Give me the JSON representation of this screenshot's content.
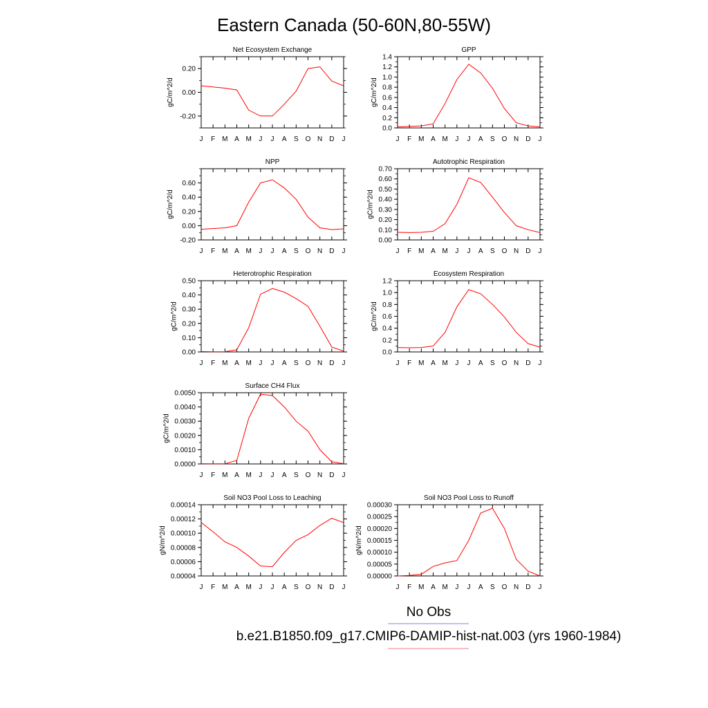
{
  "figure_title": "Eastern Canada (50-60N,80-55W)",
  "months": [
    "J",
    "F",
    "M",
    "A",
    "M",
    "J",
    "J",
    "A",
    "S",
    "O",
    "N",
    "D",
    "J"
  ],
  "legend": {
    "obs_label": "No Obs",
    "obs_color": "#7f7ff0",
    "model_label": "b.e21.B1850.f09_g17.CMIP6-DAMIP-hist-nat.003 (yrs 1960-1984)",
    "model_color": "#f08080"
  },
  "line_color": "#ff0000",
  "chart_data": [
    {
      "type": "line",
      "title": "Net Ecosystem Exchange",
      "ylabel": "gC/m^2/d",
      "ylim": [
        -0.3,
        0.3
      ],
      "yticks": [
        -0.2,
        0.0,
        0.2
      ],
      "yticklabels": [
        "-0.20",
        "0.00",
        "0.20"
      ],
      "values": [
        0.055,
        0.045,
        0.035,
        0.02,
        -0.15,
        -0.2,
        -0.2,
        -0.1,
        0.01,
        0.2,
        0.215,
        0.095,
        0.055
      ]
    },
    {
      "type": "line",
      "title": "GPP",
      "ylabel": "gC/m^2/d",
      "ylim": [
        0,
        1.4
      ],
      "yticks": [
        0,
        0.2,
        0.4,
        0.6,
        0.8,
        1.0,
        1.2,
        1.4
      ],
      "yticklabels": [
        "0.0",
        "0.2",
        "0.4",
        "0.6",
        "0.8",
        "1.0",
        "1.2",
        "1.4"
      ],
      "values": [
        0.02,
        0.03,
        0.04,
        0.08,
        0.48,
        0.95,
        1.25,
        1.08,
        0.78,
        0.38,
        0.1,
        0.04,
        0.02
      ]
    },
    {
      "type": "line",
      "title": "NPP",
      "ylabel": "gC/m^2/d",
      "ylim": [
        -0.2,
        0.8
      ],
      "yticks": [
        -0.2,
        0.0,
        0.2,
        0.4,
        0.6
      ],
      "yticklabels": [
        "-0.20",
        "0.00",
        "0.20",
        "0.40",
        "0.60"
      ],
      "values": [
        -0.05,
        -0.04,
        -0.03,
        0.0,
        0.33,
        0.6,
        0.645,
        0.53,
        0.37,
        0.12,
        -0.03,
        -0.055,
        -0.045
      ]
    },
    {
      "type": "line",
      "title": "Autotrophic Respiration",
      "ylabel": "gC/m^2/d",
      "ylim": [
        0,
        0.7
      ],
      "yticks": [
        0,
        0.1,
        0.2,
        0.3,
        0.4,
        0.5,
        0.6,
        0.7
      ],
      "yticklabels": [
        "0.00",
        "0.10",
        "0.20",
        "0.30",
        "0.40",
        "0.50",
        "0.60",
        "0.70"
      ],
      "values": [
        0.075,
        0.072,
        0.075,
        0.085,
        0.16,
        0.35,
        0.61,
        0.565,
        0.42,
        0.27,
        0.14,
        0.1,
        0.072
      ]
    },
    {
      "type": "line",
      "title": "Heterotrophic Respiration",
      "ylabel": "gC/m^2/d",
      "ylim": [
        0,
        0.5
      ],
      "yticks": [
        0,
        0.1,
        0.2,
        0.3,
        0.4,
        0.5
      ],
      "yticklabels": [
        "0.00",
        "0.10",
        "0.20",
        "0.30",
        "0.40",
        "0.50"
      ],
      "values": [
        0.003,
        0.001,
        0.002,
        0.015,
        0.17,
        0.405,
        0.445,
        0.42,
        0.375,
        0.32,
        0.18,
        0.035,
        0.005
      ]
    },
    {
      "type": "line",
      "title": "Ecosystem Respiration",
      "ylabel": "gC/m^2/d",
      "ylim": [
        0,
        1.2
      ],
      "yticks": [
        0,
        0.2,
        0.4,
        0.6,
        0.8,
        1.0,
        1.2
      ],
      "yticklabels": [
        "0.0",
        "0.2",
        "0.4",
        "0.6",
        "0.8",
        "1.0",
        "1.2"
      ],
      "values": [
        0.075,
        0.07,
        0.075,
        0.1,
        0.33,
        0.76,
        1.05,
        0.98,
        0.8,
        0.59,
        0.33,
        0.14,
        0.08
      ]
    },
    {
      "type": "line",
      "title": "Surface CH4 Flux",
      "ylabel": "gC/m^2/d",
      "ylim": [
        0,
        0.005
      ],
      "yticks": [
        0,
        0.001,
        0.002,
        0.003,
        0.004,
        0.005
      ],
      "yticklabels": [
        "0.0000",
        "0.0010",
        "0.0020",
        "0.0030",
        "0.0040",
        "0.0050"
      ],
      "values": [
        2e-05,
        1e-05,
        1e-05,
        0.00025,
        0.0032,
        0.0049,
        0.0048,
        0.004,
        0.003,
        0.0023,
        0.001,
        0.00015,
        2e-05
      ]
    },
    {
      "type": "line",
      "title": "Soil NO3 Pool Loss to Leaching",
      "ylabel": "gN/m^2/d",
      "ylim": [
        4e-05,
        0.00014
      ],
      "yticks": [
        4e-05,
        6e-05,
        8e-05,
        0.0001,
        0.00012,
        0.00014
      ],
      "yticklabels": [
        "0.00004",
        "0.00006",
        "0.00008",
        "0.00010",
        "0.00012",
        "0.00014"
      ],
      "values": [
        0.000115,
        0.000102,
        8.8e-05,
        8e-05,
        6.8e-05,
        5.4e-05,
        5.3e-05,
        7.3e-05,
        9e-05,
        9.8e-05,
        0.000111,
        0.000121,
        0.000115
      ]
    },
    {
      "type": "line",
      "title": "Soil NO3 Pool Loss to Runoff",
      "ylabel": "gN/m^2/d",
      "ylim": [
        0,
        0.0003
      ],
      "yticks": [
        0,
        5e-05,
        0.0001,
        0.00015,
        0.0002,
        0.00025,
        0.0003
      ],
      "yticklabels": [
        "0.00000",
        "0.00005",
        "0.00010",
        "0.00015",
        "0.00020",
        "0.00025",
        "0.00030"
      ],
      "values": [
        0.0,
        2e-06,
        7e-06,
        4e-05,
        5.5e-05,
        6.5e-05,
        0.00015,
        0.000265,
        0.000285,
        0.0002,
        7e-05,
        2e-05,
        0.0
      ]
    }
  ]
}
